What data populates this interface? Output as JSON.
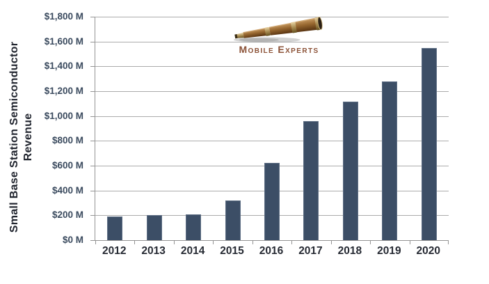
{
  "logo": {
    "label": "Mobile Experts",
    "icon": "telescope-icon",
    "text_color": "#8B5136"
  },
  "chart_data": {
    "type": "bar",
    "title": "",
    "ylabel": "Small Base Station Semiconductor Revenue",
    "ylabel_lines": [
      "Small Base Station Semiconductor",
      "Revenue"
    ],
    "xlabel": "",
    "categories": [
      "2012",
      "2013",
      "2014",
      "2015",
      "2016",
      "2017",
      "2018",
      "2019",
      "2020"
    ],
    "values": [
      190,
      200,
      210,
      320,
      620,
      960,
      1115,
      1280,
      1550
    ],
    "values_unit": "$M",
    "y_ticks": [
      "$1,800 M",
      "$1,600 M",
      "$1,400 M",
      "$1,200 M",
      "$1,000 M",
      "$800 M",
      "$600 M",
      "$400 M",
      "$200 M",
      "$0 M"
    ],
    "ylim": [
      0,
      1800
    ],
    "y_tick_step": 200,
    "grid": true,
    "legend": false,
    "colors": {
      "bar": "#3C4E66",
      "bar_border": "#5F6F85",
      "gridline": "#ABABAB",
      "axis": "#939393",
      "y_tick_text": "#3A4A5E",
      "x_tick_text": "#262A33",
      "axis_title_text": "#20242E"
    }
  }
}
